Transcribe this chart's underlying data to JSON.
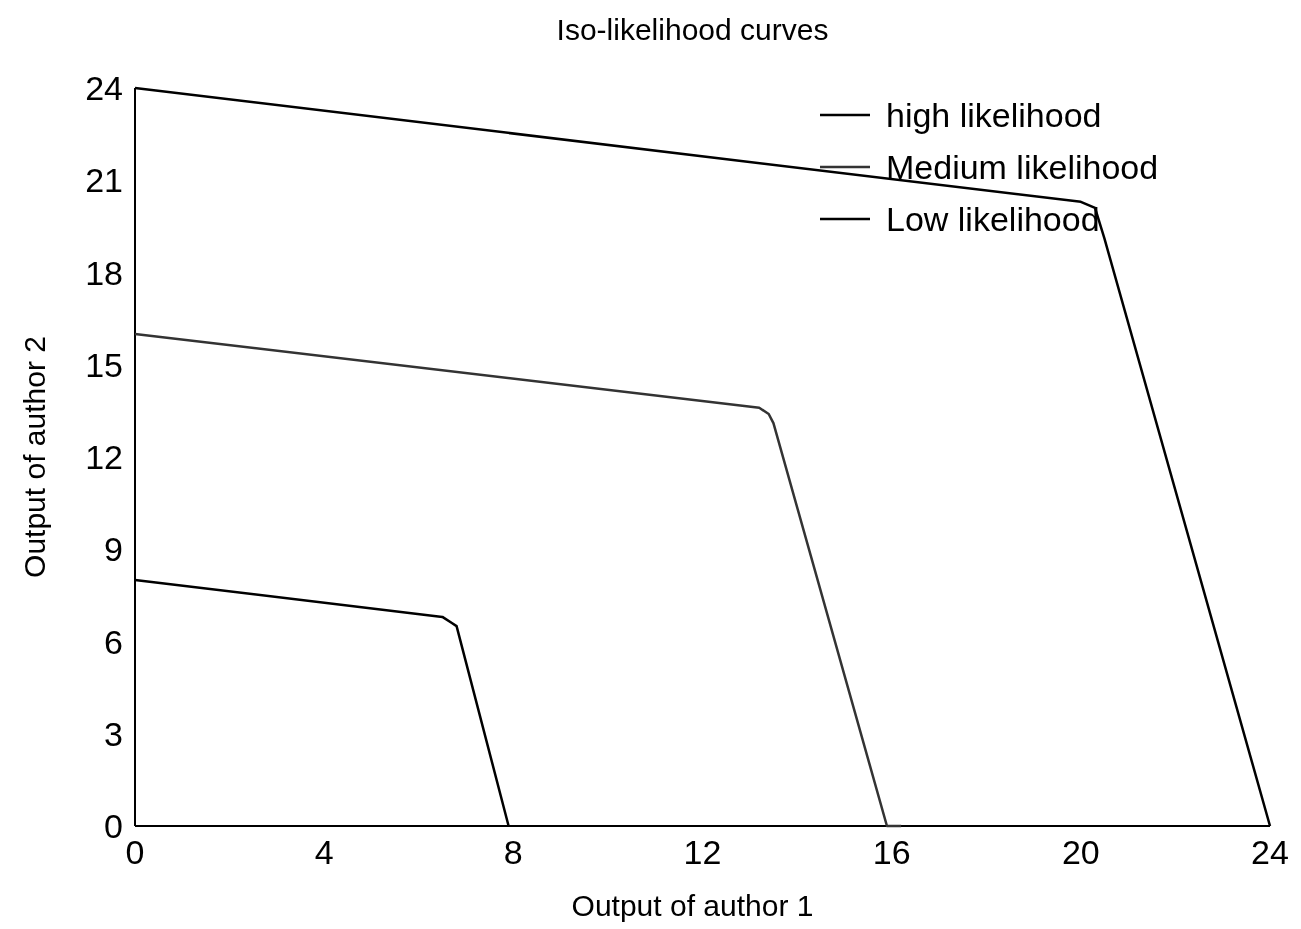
{
  "chart_data": {
    "type": "line",
    "title": "Iso-likelihood curves",
    "xlabel": "Output of author 1",
    "ylabel": "Output of author 2",
    "xlim": [
      0,
      24
    ],
    "ylim": [
      0,
      24
    ],
    "xticks": [
      0,
      4,
      8,
      12,
      16,
      20,
      24
    ],
    "yticks": [
      0,
      3,
      6,
      9,
      12,
      15,
      18,
      21,
      24
    ],
    "grid": false,
    "legend": "top right",
    "marker": "none",
    "line_style": "solid",
    "series": [
      {
        "name": "high likelihood",
        "color": "#000000",
        "x": [
          0,
          20,
          20.3,
          20.5,
          24
        ],
        "values": [
          24,
          20.3,
          20.1,
          19.1,
          0
        ]
      },
      {
        "name": "Medium likelihood",
        "color": "#333333",
        "x": [
          0,
          13.2,
          13.4,
          13.5,
          15.9,
          16.2
        ],
        "values": [
          16,
          13.6,
          13.4,
          13.1,
          0,
          0
        ]
      },
      {
        "name": "Low likelihood",
        "color": "#000000",
        "x": [
          0,
          6.5,
          6.7,
          6.8,
          7.9
        ],
        "values": [
          8,
          6.8,
          6.6,
          6.5,
          0
        ]
      }
    ]
  }
}
